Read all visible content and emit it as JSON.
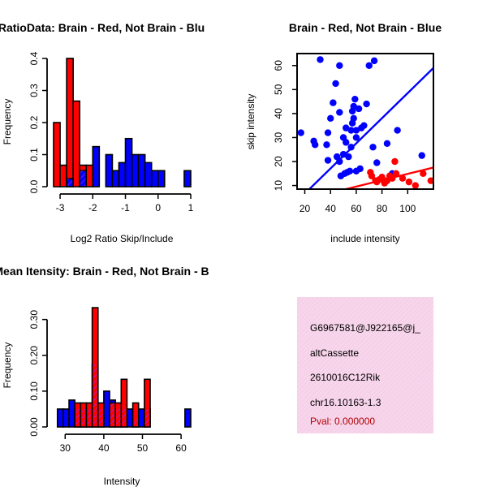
{
  "colors": {
    "brain": "#ff0000",
    "not_brain": "#0000ff",
    "overlap": "#a020f0",
    "info_bg": "#f7d6ec",
    "pval": "#b00000"
  },
  "chart_data": [
    {
      "id": "ratio",
      "type": "bar",
      "title": "RatioData: Brain - Red, Not Brain - Blu",
      "xlabel": "Log2 Ratio Skip/Include",
      "ylabel": "Frequency",
      "xlim": [
        -3.2,
        1.05
      ],
      "ylim": [
        0,
        0.4
      ],
      "xticks": [
        "-3",
        "-2",
        "-1",
        "0",
        "1"
      ],
      "xtick_values": [
        -3,
        -2,
        -1,
        0,
        1
      ],
      "yticks": [
        "0.0",
        "0.1",
        "0.2",
        "0.3",
        "0.4"
      ],
      "ytick_values": [
        0,
        0.1,
        0.2,
        0.3,
        0.4
      ],
      "bin_width": 0.2,
      "series": [
        {
          "name": "Brain",
          "color": "red",
          "bins": [
            [
              -3.2,
              0.2
            ],
            [
              -3.0,
              0.067
            ],
            [
              -2.8,
              0.4
            ],
            [
              -2.6,
              0.267
            ],
            [
              -2.4,
              0.067
            ],
            [
              -2.2,
              0.067
            ]
          ]
        },
        {
          "name": "Not Brain",
          "color": "blue",
          "bins": [
            [
              -2.8,
              0.025
            ],
            [
              -2.4,
              0.05
            ],
            [
              -2.0,
              0.125
            ],
            [
              -1.6,
              0.1
            ],
            [
              -1.4,
              0.05
            ],
            [
              -1.2,
              0.075
            ],
            [
              -1.0,
              0.15
            ],
            [
              -0.8,
              0.1
            ],
            [
              -0.6,
              0.1
            ],
            [
              -0.4,
              0.075
            ],
            [
              -0.2,
              0.05
            ],
            [
              0.0,
              0.05
            ],
            [
              0.8,
              0.05
            ]
          ]
        }
      ]
    },
    {
      "id": "scatter",
      "type": "scatter",
      "title": "Brain - Red, Not Brain - Blue",
      "xlabel": "include intensity",
      "ylabel": "skip intensity",
      "xlim": [
        14,
        120
      ],
      "ylim": [
        8.5,
        65
      ],
      "xticks": [
        "20",
        "40",
        "60",
        "80",
        "100"
      ],
      "xtick_values": [
        20,
        40,
        60,
        80,
        100
      ],
      "yticks": [
        "10",
        "20",
        "30",
        "40",
        "50",
        "60"
      ],
      "ytick_values": [
        10,
        20,
        30,
        40,
        50,
        60
      ],
      "series": [
        {
          "name": "Not Brain",
          "color": "blue",
          "points": [
            [
              17,
              32
            ],
            [
              27,
              28.5
            ],
            [
              28,
              27
            ],
            [
              32,
              62.5
            ],
            [
              37,
              27
            ],
            [
              38,
              20.5
            ],
            [
              38,
              32
            ],
            [
              40,
              38
            ],
            [
              42,
              44.5
            ],
            [
              44,
              52.5
            ],
            [
              45,
              22
            ],
            [
              47,
              40.5
            ],
            [
              47,
              60
            ],
            [
              47,
              20
            ],
            [
              48,
              14
            ],
            [
              50,
              30
            ],
            [
              50,
              23
            ],
            [
              51,
              15
            ],
            [
              52,
              34
            ],
            [
              52,
              28
            ],
            [
              53,
              15.5
            ],
            [
              54,
              22
            ],
            [
              55,
              16
            ],
            [
              56,
              33
            ],
            [
              56,
              26
            ],
            [
              57,
              41
            ],
            [
              57,
              36
            ],
            [
              58,
              43
            ],
            [
              58,
              38
            ],
            [
              59,
              46
            ],
            [
              60,
              30
            ],
            [
              60,
              33
            ],
            [
              60,
              16
            ],
            [
              62,
              42
            ],
            [
              63,
              17
            ],
            [
              64,
              34
            ],
            [
              66,
              35
            ],
            [
              68,
              44
            ],
            [
              70,
              60
            ],
            [
              73,
              26
            ],
            [
              74,
              62
            ],
            [
              76,
              19.5
            ],
            [
              80,
              13
            ],
            [
              84,
              27.5
            ],
            [
              88,
              15
            ],
            [
              92,
              33
            ],
            [
              111,
              22.5
            ]
          ]
        },
        {
          "name": "Brain",
          "color": "red",
          "points": [
            [
              71,
              15.5
            ],
            [
              72,
              14
            ],
            [
              75,
              12
            ],
            [
              76,
              11.5
            ],
            [
              78,
              12.5
            ],
            [
              80,
              13.5
            ],
            [
              82,
              11
            ],
            [
              84,
              12
            ],
            [
              86,
              14
            ],
            [
              88,
              13
            ],
            [
              90,
              20
            ],
            [
              91,
              15
            ],
            [
              96,
              13
            ],
            [
              101,
              11.5
            ],
            [
              106,
              10
            ],
            [
              112,
              15
            ],
            [
              118,
              12
            ]
          ]
        }
      ],
      "fit_lines": [
        {
          "color": "blue",
          "x": [
            14,
            120
          ],
          "y": [
            3.5,
            59
          ]
        },
        {
          "color": "red",
          "x": [
            52,
            120
          ],
          "y": [
            8.5,
            17.5
          ]
        }
      ]
    },
    {
      "id": "intensity",
      "type": "bar",
      "title": "Mean Itensity: Brain - Red, Not Brain - B",
      "xlabel": "Intensity",
      "ylabel": "Frequency",
      "xlim": [
        27,
        62.5
      ],
      "ylim": [
        0,
        0.34
      ],
      "xticks": [
        "30",
        "40",
        "50",
        "60"
      ],
      "xtick_values": [
        30,
        40,
        50,
        60
      ],
      "yticks": [
        "0.00",
        "0.10",
        "0.20",
        "0.30"
      ],
      "ytick_values": [
        0,
        0.1,
        0.2,
        0.3
      ],
      "bin_width": 1.5,
      "series": [
        {
          "name": "Not Brain",
          "color": "blue",
          "bins": [
            [
              28,
              0.05
            ],
            [
              29.5,
              0.05
            ],
            [
              31,
              0.075
            ],
            [
              32.5,
              0.05
            ],
            [
              34,
              0.05
            ],
            [
              35.5,
              0.05
            ],
            [
              37,
              0.175
            ],
            [
              38.5,
              0.05
            ],
            [
              40,
              0.1
            ],
            [
              41.5,
              0.075
            ],
            [
              43,
              0.05
            ],
            [
              44.5,
              0.05
            ],
            [
              46,
              0.05
            ],
            [
              47.5,
              0.025
            ],
            [
              49,
              0.05
            ],
            [
              50.5,
              0.05
            ],
            [
              61,
              0.05
            ]
          ]
        },
        {
          "name": "Brain",
          "color": "red",
          "bins": [
            [
              32.5,
              0.067
            ],
            [
              34,
              0.067
            ],
            [
              35.5,
              0.067
            ],
            [
              37,
              0.333
            ],
            [
              38.5,
              0.067
            ],
            [
              41.5,
              0.067
            ],
            [
              43,
              0.067
            ],
            [
              44.5,
              0.133
            ],
            [
              47.5,
              0.067
            ],
            [
              50.5,
              0.133
            ]
          ]
        }
      ]
    }
  ],
  "info": {
    "id": "G6967581@J922165@j_",
    "event_type": "altCassette",
    "gene": "2610016C12Rik",
    "location": "chr16.10163-1.3",
    "pval": "Pval: 0.000000"
  }
}
